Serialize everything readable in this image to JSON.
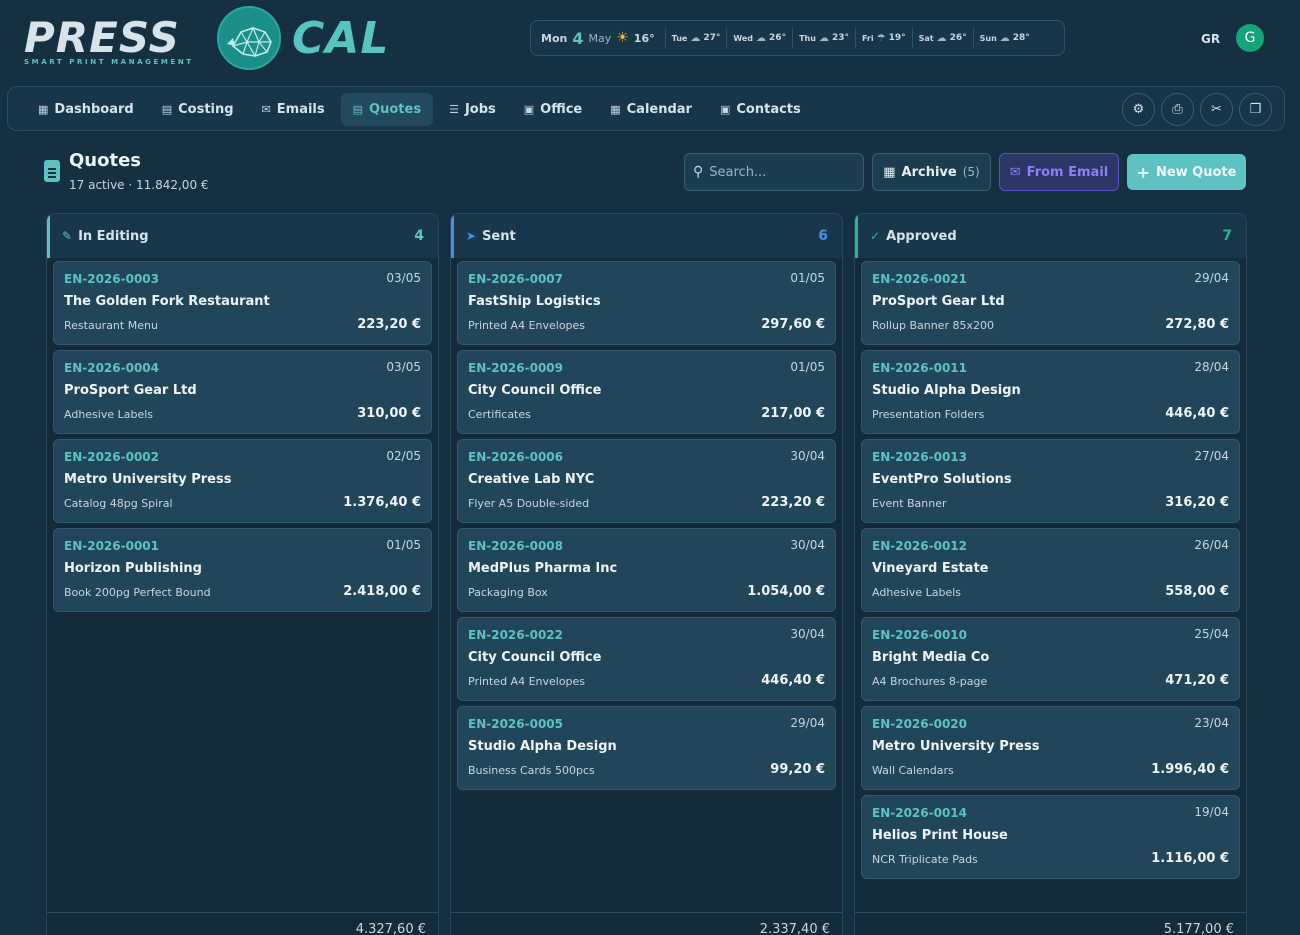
{
  "brand": {
    "press": "PRESS",
    "tagline": "SMART PRINT MANAGEMENT",
    "cal": "CAL"
  },
  "weather": {
    "today": {
      "day": "Mon",
      "date": "4",
      "month": "May",
      "icon": "sun-icon",
      "temp": "16°"
    },
    "forecast": [
      {
        "day": "Tue",
        "icon": "cloudy-icon",
        "temp": "27°"
      },
      {
        "day": "Wed",
        "icon": "cloudy-icon",
        "temp": "26°"
      },
      {
        "day": "Thu",
        "icon": "cloudy-icon",
        "temp": "23°"
      },
      {
        "day": "Fri",
        "icon": "rain-icon",
        "temp": "19°"
      },
      {
        "day": "Sat",
        "icon": "cloud-icon",
        "temp": "26°"
      },
      {
        "day": "Sun",
        "icon": "cloudy-icon",
        "temp": "28°"
      }
    ]
  },
  "user": {
    "lang": "GR",
    "initial": "G"
  },
  "nav": {
    "items": [
      {
        "label": "Dashboard",
        "icon": "grid-icon"
      },
      {
        "label": "Costing",
        "icon": "calculator-icon"
      },
      {
        "label": "Emails",
        "icon": "envelope-icon"
      },
      {
        "label": "Quotes",
        "icon": "document-icon",
        "active": true
      },
      {
        "label": "Jobs",
        "icon": "list-icon"
      },
      {
        "label": "Office",
        "icon": "briefcase-icon"
      },
      {
        "label": "Calendar",
        "icon": "calendar-icon"
      },
      {
        "label": "Contacts",
        "icon": "contact-icon"
      }
    ],
    "tools": [
      "factory-icon",
      "printer-icon",
      "scissors-icon",
      "box-icon"
    ]
  },
  "page": {
    "title": "Quotes",
    "subtitle": "17 active · 11.842,00 €",
    "search_placeholder": "Search...",
    "archive_label": "Archive",
    "archive_count": "(5)",
    "from_email_label": "From Email",
    "new_quote_label": "New Quote"
  },
  "columns": [
    {
      "title": "In Editing",
      "count": "4",
      "icon": "pencil-icon",
      "color": "#5fc2c2",
      "total": "4.327,60 €",
      "cards": [
        {
          "code": "EN-2026-0003",
          "date": "03/05",
          "client": "The Golden Fork Restaurant",
          "product": "Restaurant Menu",
          "amount": "223,20 €"
        },
        {
          "code": "EN-2026-0004",
          "date": "03/05",
          "client": "ProSport Gear Ltd",
          "product": "Adhesive Labels",
          "amount": "310,00 €"
        },
        {
          "code": "EN-2026-0002",
          "date": "02/05",
          "client": "Metro University Press",
          "product": "Catalog 48pg Spiral",
          "amount": "1.376,40 €"
        },
        {
          "code": "EN-2026-0001",
          "date": "01/05",
          "client": "Horizon Publishing",
          "product": "Book 200pg Perfect Bound",
          "amount": "2.418,00 €"
        }
      ]
    },
    {
      "title": "Sent",
      "count": "6",
      "icon": "paper-plane-icon",
      "color": "#4a90e2",
      "total": "2.337,40 €",
      "cards": [
        {
          "code": "EN-2026-0007",
          "date": "01/05",
          "client": "FastShip Logistics",
          "product": "Printed A4 Envelopes",
          "amount": "297,60 €"
        },
        {
          "code": "EN-2026-0009",
          "date": "01/05",
          "client": "City Council Office",
          "product": "Certificates",
          "amount": "217,00 €"
        },
        {
          "code": "EN-2026-0006",
          "date": "30/04",
          "client": "Creative Lab NYC",
          "product": "Flyer A5 Double-sided",
          "amount": "223,20 €"
        },
        {
          "code": "EN-2026-0008",
          "date": "30/04",
          "client": "MedPlus Pharma Inc",
          "product": "Packaging Box",
          "amount": "1.054,00 €"
        },
        {
          "code": "EN-2026-0022",
          "date": "30/04",
          "client": "City Council Office",
          "product": "Printed A4 Envelopes",
          "amount": "446,40 €"
        },
        {
          "code": "EN-2026-0005",
          "date": "29/04",
          "client": "Studio Alpha Design",
          "product": "Business Cards 500pcs",
          "amount": "99,20 €"
        }
      ]
    },
    {
      "title": "Approved",
      "count": "7",
      "icon": "check-icon",
      "color": "#2db88a",
      "total": "5.177,00 €",
      "cards": [
        {
          "code": "EN-2026-0021",
          "date": "29/04",
          "client": "ProSport Gear Ltd",
          "product": "Rollup Banner 85x200",
          "amount": "272,80 €"
        },
        {
          "code": "EN-2026-0011",
          "date": "28/04",
          "client": "Studio Alpha Design",
          "product": "Presentation Folders",
          "amount": "446,40 €"
        },
        {
          "code": "EN-2026-0013",
          "date": "27/04",
          "client": "EventPro Solutions",
          "product": "Event Banner",
          "amount": "316,20 €"
        },
        {
          "code": "EN-2026-0012",
          "date": "26/04",
          "client": "Vineyard Estate",
          "product": "Adhesive Labels",
          "amount": "558,00 €"
        },
        {
          "code": "EN-2026-0010",
          "date": "25/04",
          "client": "Bright Media Co",
          "product": "A4 Brochures 8-page",
          "amount": "471,20 €"
        },
        {
          "code": "EN-2026-0020",
          "date": "23/04",
          "client": "Metro University Press",
          "product": "Wall Calendars",
          "amount": "1.996,40 €"
        },
        {
          "code": "EN-2026-0014",
          "date": "19/04",
          "client": "Helios Print House",
          "product": "NCR Triplicate Pads",
          "amount": "1.116,00 €"
        }
      ]
    }
  ]
}
